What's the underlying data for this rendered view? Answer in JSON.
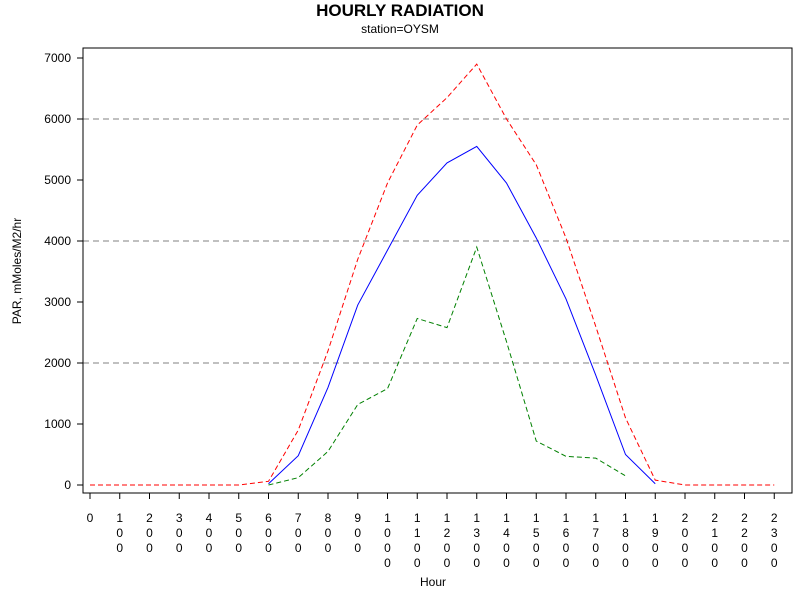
{
  "chart_data": {
    "type": "line",
    "title": "HOURLY RADIATION",
    "subtitle": "station=OYSM",
    "xlabel": "Hour",
    "ylabel": "PAR, mMoles/M2/hr",
    "ylim": [
      -200,
      7300
    ],
    "yticks": [
      0,
      1000,
      2000,
      3000,
      4000,
      5000,
      6000,
      7000
    ],
    "reference_lines": [
      2000,
      4000,
      6000
    ],
    "grid": "horizontal dashed reference lines",
    "legend": "none",
    "categories": [
      "0",
      "100",
      "200",
      "300",
      "400",
      "500",
      "600",
      "700",
      "800",
      "900",
      "1000",
      "1100",
      "1200",
      "1300",
      "1400",
      "1500",
      "1600",
      "1700",
      "1800",
      "1900",
      "2000",
      "2100",
      "2200",
      "2300"
    ],
    "series": [
      {
        "color": "#ff0000",
        "style": "dashed",
        "values": [
          0,
          0,
          0,
          0,
          0,
          0,
          60,
          900,
          2200,
          3700,
          4950,
          5900,
          6350,
          6900,
          6000,
          5250,
          4050,
          2600,
          1100,
          80,
          0,
          0,
          0,
          0
        ]
      },
      {
        "color": "#0000ff",
        "style": "solid",
        "values": [
          null,
          null,
          null,
          null,
          null,
          null,
          20,
          480,
          1600,
          2950,
          3850,
          4750,
          5280,
          5550,
          4950,
          4050,
          3050,
          1800,
          500,
          20,
          null,
          null,
          null,
          null
        ]
      },
      {
        "color": "#008000",
        "style": "dashed",
        "values": [
          null,
          null,
          null,
          null,
          null,
          null,
          0,
          120,
          550,
          1320,
          1580,
          2730,
          2580,
          3900,
          2350,
          720,
          470,
          440,
          150,
          null,
          null,
          null,
          null,
          null
        ]
      }
    ]
  }
}
